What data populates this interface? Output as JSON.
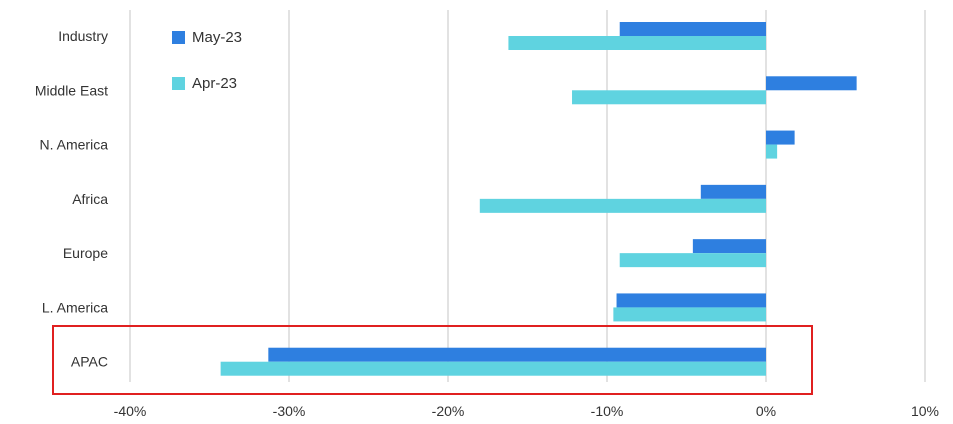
{
  "colors": {
    "may": "#2e7fe0",
    "apr": "#5fd3e0",
    "grid": "#d9d9d9",
    "highlight": "#e02020"
  },
  "chart_data": {
    "type": "bar",
    "orientation": "horizontal",
    "categories": [
      "Industry",
      "Middle East",
      "N. America",
      "Africa",
      "Europe",
      "L. America",
      "APAC"
    ],
    "series": [
      {
        "name": "May-23",
        "values": [
          -9.2,
          5.7,
          1.8,
          -4.1,
          -4.6,
          -9.4,
          -31.3
        ]
      },
      {
        "name": "Apr-23",
        "values": [
          -16.2,
          -12.2,
          0.7,
          -18.0,
          -9.2,
          -9.6,
          -34.3
        ]
      }
    ],
    "x_ticks": [
      "-40%",
      "-30%",
      "-20%",
      "-10%",
      "0%",
      "10%"
    ],
    "x_tick_values": [
      -40,
      -30,
      -20,
      -10,
      0,
      10
    ],
    "xlim": [
      -40,
      10
    ],
    "grid": true,
    "legend_position": "top-left",
    "highlighted_category": "APAC"
  }
}
